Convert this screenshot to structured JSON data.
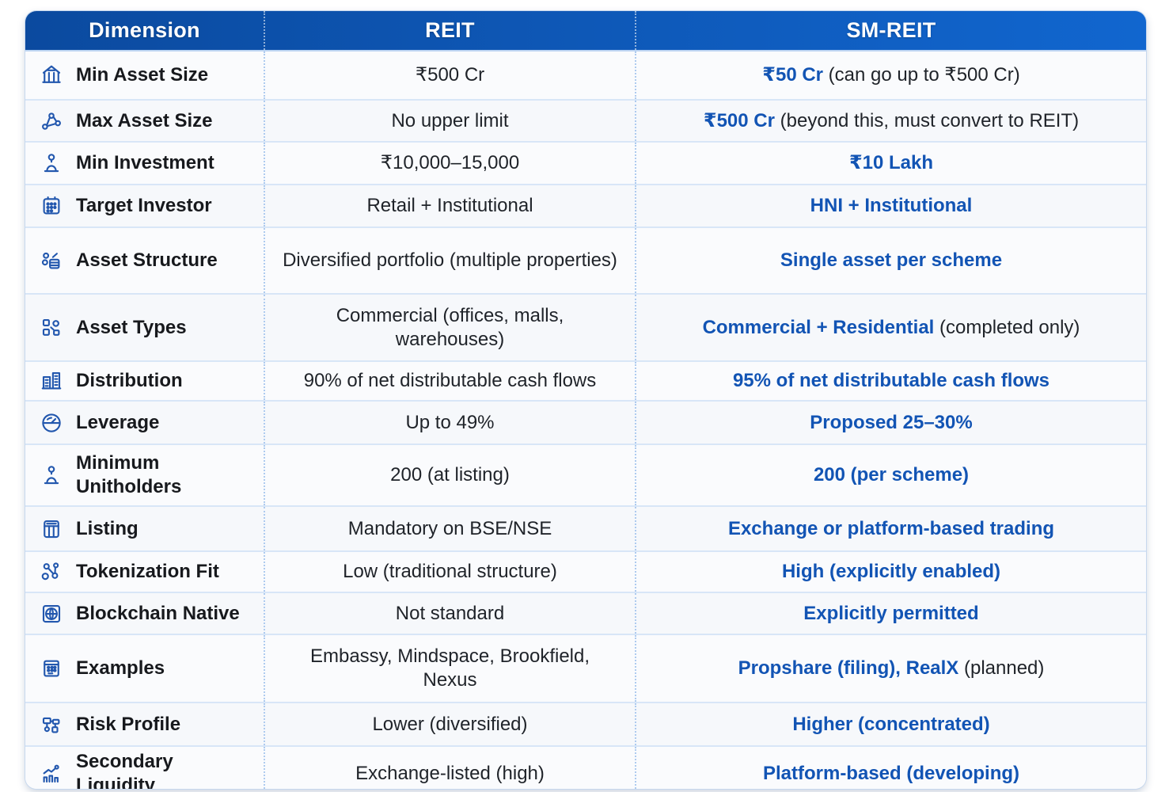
{
  "header": {
    "columns": [
      "Dimension",
      "REIT",
      "SM-REIT"
    ]
  },
  "rows": [
    {
      "icon": "bank-icon",
      "dimension": "Min Asset Size",
      "reit": "₹500 Cr",
      "smreit": [
        {
          "text": "₹50 Cr",
          "em": true
        },
        {
          "text": " (can go up to ₹500 Cr)",
          "em": false
        }
      ]
    },
    {
      "icon": "network-nodes-icon",
      "dimension": "Max Asset Size",
      "reit": "No upper limit",
      "smreit": [
        {
          "text": "₹500 Cr",
          "em": true
        },
        {
          "text": " (beyond this, must convert to REIT)",
          "em": false
        }
      ]
    },
    {
      "icon": "person-pin-icon",
      "dimension": "Min Investment",
      "reit": "₹10,000–15,000",
      "smreit": [
        {
          "text": "₹10 Lakh",
          "em": true
        }
      ]
    },
    {
      "icon": "calendar-grid-icon",
      "dimension": "Target Investor",
      "reit": "Retail + Institutional",
      "smreit": [
        {
          "text": "HNI + Institutional",
          "em": true
        }
      ]
    },
    {
      "icon": "coins-stack-icon",
      "dimension": "Asset Structure",
      "reit": "Diversified portfolio (multiple properties)",
      "smreit": [
        {
          "text": "Single asset per scheme",
          "em": true
        }
      ]
    },
    {
      "icon": "blocks-link-icon",
      "dimension": "Asset Types",
      "reit": "Commercial (offices, malls, warehouses)",
      "smreit": [
        {
          "text": "Commercial + Residential",
          "em": true
        },
        {
          "text": " (completed only)",
          "em": false
        }
      ]
    },
    {
      "icon": "buildings-icon",
      "dimension": "Distribution",
      "reit": "90% of net distributable cash flows",
      "smreit": [
        {
          "text": "95% of net distributable cash flows",
          "em": true
        }
      ]
    },
    {
      "icon": "gauge-icon",
      "dimension": "Leverage",
      "reit": "Up to 49%",
      "smreit": [
        {
          "text": "Proposed 25–30%",
          "em": true
        }
      ]
    },
    {
      "icon": "person-pin-icon",
      "dimension": "Minimum Unitholders",
      "reit": "200 (at listing)",
      "smreit": [
        {
          "text": "200 (per scheme)",
          "em": true
        }
      ]
    },
    {
      "icon": "grid-calculator-icon",
      "dimension": "Listing",
      "reit": "Mandatory on BSE/NSE",
      "smreit": [
        {
          "text": "Exchange or platform-based trading",
          "em": true
        }
      ]
    },
    {
      "icon": "token-circles-icon",
      "dimension": "Tokenization Fit",
      "reit": "Low (traditional structure)",
      "smreit": [
        {
          "text": "High (explicitly enabled)",
          "em": true
        }
      ]
    },
    {
      "icon": "globe-square-icon",
      "dimension": "Blockchain Native",
      "reit": "Not standard",
      "smreit": [
        {
          "text": "Explicitly permitted",
          "em": true
        }
      ]
    },
    {
      "icon": "building-calendar-icon",
      "dimension": "Examples",
      "reit": "Embassy, Mindspace, Brookfield, Nexus",
      "smreit": [
        {
          "text": "Propshare (filing), RealX",
          "em": true
        },
        {
          "text": " (planned)",
          "em": false
        }
      ]
    },
    {
      "icon": "risk-network-icon",
      "dimension": "Risk Profile",
      "reit": "Lower (diversified)",
      "smreit": [
        {
          "text": "Higher (concentrated)",
          "em": true
        }
      ]
    },
    {
      "icon": "chart-growth-icon",
      "dimension": "Secondary Liquidity",
      "reit": "Exchange-listed (high)",
      "smreit": [
        {
          "text": "Platform-based (developing)",
          "em": true
        }
      ]
    }
  ],
  "colors": {
    "header_gradient_start": "#0b4a9f",
    "header_gradient_end": "#1166cf",
    "header_text": "#ffffff",
    "accent_blue": "#1254b4",
    "body_text": "#1f2329",
    "row_divider": "#d8e6f7",
    "column_dot": "#aecbef",
    "row_bg": "#fafbfd",
    "card_border": "#c7d8ee"
  }
}
